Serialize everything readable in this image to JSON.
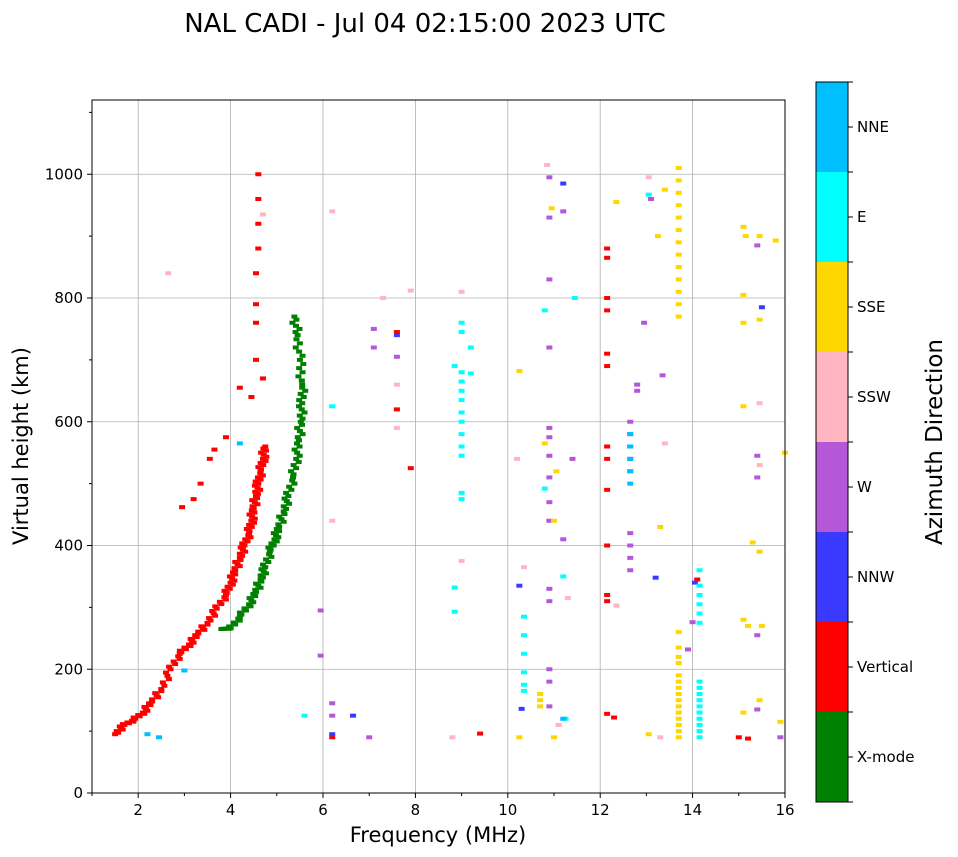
{
  "chart_data": {
    "type": "scatter",
    "title": "NAL CADI - Jul 04 02:15:00 2023 UTC",
    "xlabel": "Frequency (MHz)",
    "ylabel": "Virtual height (km)",
    "xlim": [
      1,
      16
    ],
    "ylim": [
      0,
      1120
    ],
    "xticks": [
      2,
      4,
      6,
      8,
      10,
      12,
      14,
      16
    ],
    "yticks": [
      0,
      200,
      400,
      600,
      800,
      1000
    ],
    "grid": true,
    "colorbar": {
      "label": "Azimuth Direction",
      "categories": [
        {
          "name": "X-mode",
          "color": "#008000"
        },
        {
          "name": "Vertical",
          "color": "#ff0000"
        },
        {
          "name": "NNW",
          "color": "#3a3aff"
        },
        {
          "name": "W",
          "color": "#b558d8"
        },
        {
          "name": "SSW",
          "color": "#ffb6c1"
        },
        {
          "name": "SSE",
          "color": "#ffd700"
        },
        {
          "name": "E",
          "color": "#00ffff"
        },
        {
          "name": "NNE",
          "color": "#00bfff"
        }
      ]
    },
    "series": [
      {
        "name": "O-mode trace (Vertical)",
        "category": "Vertical",
        "points": [
          [
            1.5,
            95
          ],
          [
            1.7,
            110
          ],
          [
            1.9,
            118
          ],
          [
            2.1,
            130
          ],
          [
            2.3,
            148
          ],
          [
            2.5,
            168
          ],
          [
            2.7,
            200
          ],
          [
            2.9,
            225
          ],
          [
            3.1,
            240
          ],
          [
            3.3,
            258
          ],
          [
            3.5,
            275
          ],
          [
            3.7,
            298
          ],
          [
            3.9,
            320
          ],
          [
            4.0,
            340
          ],
          [
            4.1,
            360
          ],
          [
            4.2,
            380
          ],
          [
            4.3,
            400
          ],
          [
            4.4,
            420
          ],
          [
            4.45,
            440
          ],
          [
            4.5,
            460
          ],
          [
            4.55,
            480
          ],
          [
            4.6,
            500
          ],
          [
            4.65,
            520
          ],
          [
            4.7,
            540
          ],
          [
            4.75,
            560
          ]
        ]
      },
      {
        "name": "X-mode trace",
        "category": "X-mode",
        "points": [
          [
            3.8,
            265
          ],
          [
            4.0,
            266
          ],
          [
            4.2,
            285
          ],
          [
            4.4,
            305
          ],
          [
            4.55,
            325
          ],
          [
            4.65,
            345
          ],
          [
            4.75,
            365
          ],
          [
            4.85,
            390
          ],
          [
            4.95,
            410
          ],
          [
            5.05,
            430
          ],
          [
            5.15,
            455
          ],
          [
            5.25,
            480
          ],
          [
            5.35,
            510
          ],
          [
            5.42,
            540
          ],
          [
            5.48,
            570
          ],
          [
            5.52,
            600
          ],
          [
            5.55,
            630
          ],
          [
            5.55,
            660
          ],
          [
            5.5,
            700
          ],
          [
            5.45,
            740
          ],
          [
            5.38,
            770
          ]
        ]
      },
      {
        "name": "Spread echoes (Vertical)",
        "category": "Vertical",
        "points": [
          [
            2.95,
            462
          ],
          [
            3.2,
            475
          ],
          [
            3.35,
            500
          ],
          [
            3.55,
            540
          ],
          [
            3.65,
            555
          ],
          [
            3.9,
            575
          ],
          [
            4.2,
            655
          ],
          [
            4.45,
            640
          ],
          [
            4.7,
            670
          ],
          [
            4.55,
            700
          ],
          [
            4.55,
            760
          ],
          [
            4.55,
            790
          ],
          [
            4.55,
            840
          ],
          [
            4.6,
            880
          ],
          [
            4.6,
            920
          ],
          [
            4.6,
            960
          ],
          [
            4.6,
            1000
          ],
          [
            12.15,
            310
          ],
          [
            12.15,
            320
          ],
          [
            12.15,
            400
          ],
          [
            12.15,
            490
          ],
          [
            12.15,
            540
          ],
          [
            12.15,
            560
          ],
          [
            12.15,
            690
          ],
          [
            12.15,
            710
          ],
          [
            12.15,
            780
          ],
          [
            12.15,
            800
          ],
          [
            12.15,
            865
          ],
          [
            12.15,
            880
          ],
          [
            12.3,
            122
          ],
          [
            12.15,
            128
          ],
          [
            14.1,
            345
          ],
          [
            15.0,
            90
          ],
          [
            15.2,
            88
          ],
          [
            7.6,
            620
          ],
          [
            7.6,
            745
          ],
          [
            7.9,
            525
          ],
          [
            9.4,
            96
          ],
          [
            6.2,
            90
          ]
        ]
      },
      {
        "name": "Spread echoes (NNW)",
        "category": "NNW",
        "points": [
          [
            6.2,
            95
          ],
          [
            6.65,
            125
          ],
          [
            10.25,
            335
          ],
          [
            10.3,
            136
          ],
          [
            11.2,
            985
          ],
          [
            13.2,
            348
          ],
          [
            15.5,
            785
          ],
          [
            7.6,
            740
          ],
          [
            14.05,
            340
          ]
        ]
      },
      {
        "name": "Spread echoes (W)",
        "category": "W",
        "points": [
          [
            5.95,
            295
          ],
          [
            5.95,
            222
          ],
          [
            6.2,
            145
          ],
          [
            6.2,
            125
          ],
          [
            12.65,
            360
          ],
          [
            12.65,
            380
          ],
          [
            12.65,
            400
          ],
          [
            12.65,
            420
          ],
          [
            12.65,
            520
          ],
          [
            12.65,
            540
          ],
          [
            12.65,
            560
          ],
          [
            12.65,
            580
          ],
          [
            12.65,
            600
          ],
          [
            12.8,
            660
          ],
          [
            12.8,
            650
          ],
          [
            13.1,
            960
          ],
          [
            13.35,
            675
          ],
          [
            12.95,
            760
          ],
          [
            10.9,
            590
          ],
          [
            10.9,
            575
          ],
          [
            10.9,
            545
          ],
          [
            10.9,
            510
          ],
          [
            10.9,
            470
          ],
          [
            10.9,
            440
          ],
          [
            10.9,
            330
          ],
          [
            10.9,
            310
          ],
          [
            10.9,
            200
          ],
          [
            10.9,
            180
          ],
          [
            10.9,
            140
          ],
          [
            10.9,
            995
          ],
          [
            10.9,
            930
          ],
          [
            10.9,
            830
          ],
          [
            10.9,
            720
          ],
          [
            11.2,
            410
          ],
          [
            11.2,
            940
          ],
          [
            11.4,
            540
          ],
          [
            14.0,
            276
          ],
          [
            13.9,
            232
          ],
          [
            15.4,
            885
          ],
          [
            15.4,
            510
          ],
          [
            15.4,
            545
          ],
          [
            15.4,
            255
          ],
          [
            15.4,
            135
          ],
          [
            15.9,
            90
          ],
          [
            7.6,
            705
          ],
          [
            7.1,
            750
          ],
          [
            7.1,
            720
          ],
          [
            7.0,
            90
          ]
        ]
      },
      {
        "name": "Spread echoes (SSW)",
        "category": "SSW",
        "points": [
          [
            2.65,
            840
          ],
          [
            4.7,
            935
          ],
          [
            6.2,
            940
          ],
          [
            6.2,
            440
          ],
          [
            7.3,
            800
          ],
          [
            7.9,
            812
          ],
          [
            9.0,
            810
          ],
          [
            9.0,
            375
          ],
          [
            8.8,
            90
          ],
          [
            10.2,
            540
          ],
          [
            10.35,
            365
          ],
          [
            10.85,
            1015
          ],
          [
            11.1,
            110
          ],
          [
            11.3,
            315
          ],
          [
            12.35,
            303
          ],
          [
            13.05,
            995
          ],
          [
            13.3,
            90
          ],
          [
            13.4,
            565
          ],
          [
            15.45,
            630
          ],
          [
            15.45,
            530
          ],
          [
            7.6,
            660
          ],
          [
            7.6,
            590
          ]
        ]
      },
      {
        "name": "Spread echoes (SSE)",
        "category": "SSE",
        "points": [
          [
            13.7,
            90
          ],
          [
            13.7,
            100
          ],
          [
            13.7,
            110
          ],
          [
            13.7,
            120
          ],
          [
            13.7,
            130
          ],
          [
            13.7,
            140
          ],
          [
            13.7,
            150
          ],
          [
            13.7,
            160
          ],
          [
            13.7,
            170
          ],
          [
            13.7,
            180
          ],
          [
            13.7,
            190
          ],
          [
            13.7,
            210
          ],
          [
            13.7,
            220
          ],
          [
            13.7,
            235
          ],
          [
            13.7,
            260
          ],
          [
            13.7,
            770
          ],
          [
            13.7,
            790
          ],
          [
            13.7,
            810
          ],
          [
            13.7,
            830
          ],
          [
            13.7,
            850
          ],
          [
            13.7,
            870
          ],
          [
            13.7,
            890
          ],
          [
            13.7,
            910
          ],
          [
            13.7,
            930
          ],
          [
            13.7,
            950
          ],
          [
            13.7,
            970
          ],
          [
            13.7,
            990
          ],
          [
            13.7,
            1010
          ],
          [
            12.35,
            955
          ],
          [
            13.25,
            900
          ],
          [
            13.3,
            430
          ],
          [
            13.4,
            975
          ],
          [
            13.05,
            95
          ],
          [
            10.7,
            140
          ],
          [
            10.7,
            150
          ],
          [
            10.7,
            160
          ],
          [
            11.0,
            90
          ],
          [
            11.0,
            440
          ],
          [
            11.05,
            520
          ],
          [
            10.95,
            945
          ],
          [
            10.8,
            565
          ],
          [
            10.25,
            90
          ],
          [
            10.25,
            682
          ],
          [
            15.1,
            915
          ],
          [
            15.15,
            900
          ],
          [
            15.45,
            900
          ],
          [
            15.8,
            893
          ],
          [
            15.1,
            805
          ],
          [
            15.1,
            760
          ],
          [
            15.45,
            765
          ],
          [
            15.1,
            625
          ],
          [
            15.3,
            405
          ],
          [
            15.45,
            390
          ],
          [
            15.1,
            280
          ],
          [
            15.2,
            270
          ],
          [
            15.5,
            270
          ],
          [
            15.1,
            130
          ],
          [
            15.45,
            150
          ],
          [
            15.9,
            115
          ],
          [
            16.0,
            550
          ]
        ]
      },
      {
        "name": "Spread echoes (E)",
        "category": "E",
        "points": [
          [
            14.15,
            90
          ],
          [
            14.15,
            100
          ],
          [
            14.15,
            110
          ],
          [
            14.15,
            120
          ],
          [
            14.15,
            130
          ],
          [
            14.15,
            140
          ],
          [
            14.15,
            150
          ],
          [
            14.15,
            160
          ],
          [
            14.15,
            170
          ],
          [
            14.15,
            180
          ],
          [
            14.15,
            275
          ],
          [
            14.15,
            290
          ],
          [
            14.15,
            305
          ],
          [
            14.15,
            320
          ],
          [
            14.15,
            335
          ],
          [
            14.15,
            360
          ],
          [
            9.0,
            760
          ],
          [
            9.0,
            745
          ],
          [
            9.0,
            680
          ],
          [
            9.0,
            665
          ],
          [
            9.0,
            650
          ],
          [
            9.0,
            635
          ],
          [
            9.0,
            615
          ],
          [
            9.0,
            600
          ],
          [
            9.0,
            580
          ],
          [
            9.0,
            560
          ],
          [
            9.0,
            545
          ],
          [
            9.0,
            485
          ],
          [
            9.0,
            475
          ],
          [
            9.2,
            720
          ],
          [
            8.85,
            690
          ],
          [
            8.85,
            332
          ],
          [
            8.85,
            293
          ],
          [
            9.2,
            678
          ],
          [
            10.35,
            285
          ],
          [
            10.35,
            255
          ],
          [
            10.35,
            225
          ],
          [
            10.35,
            195
          ],
          [
            10.35,
            175
          ],
          [
            10.35,
            165
          ],
          [
            11.2,
            350
          ],
          [
            11.25,
            120
          ],
          [
            10.8,
            780
          ],
          [
            10.8,
            492
          ],
          [
            11.45,
            800
          ],
          [
            6.2,
            625
          ],
          [
            13.05,
            967
          ],
          [
            5.6,
            125
          ]
        ]
      },
      {
        "name": "Spread echoes (NNE)",
        "category": "NNE",
        "points": [
          [
            12.65,
            500
          ],
          [
            12.65,
            520
          ],
          [
            12.65,
            540
          ],
          [
            12.65,
            560
          ],
          [
            12.65,
            580
          ],
          [
            2.2,
            95
          ],
          [
            2.45,
            90
          ],
          [
            3.0,
            198
          ],
          [
            4.2,
            565
          ],
          [
            11.2,
            120
          ]
        ]
      }
    ]
  }
}
